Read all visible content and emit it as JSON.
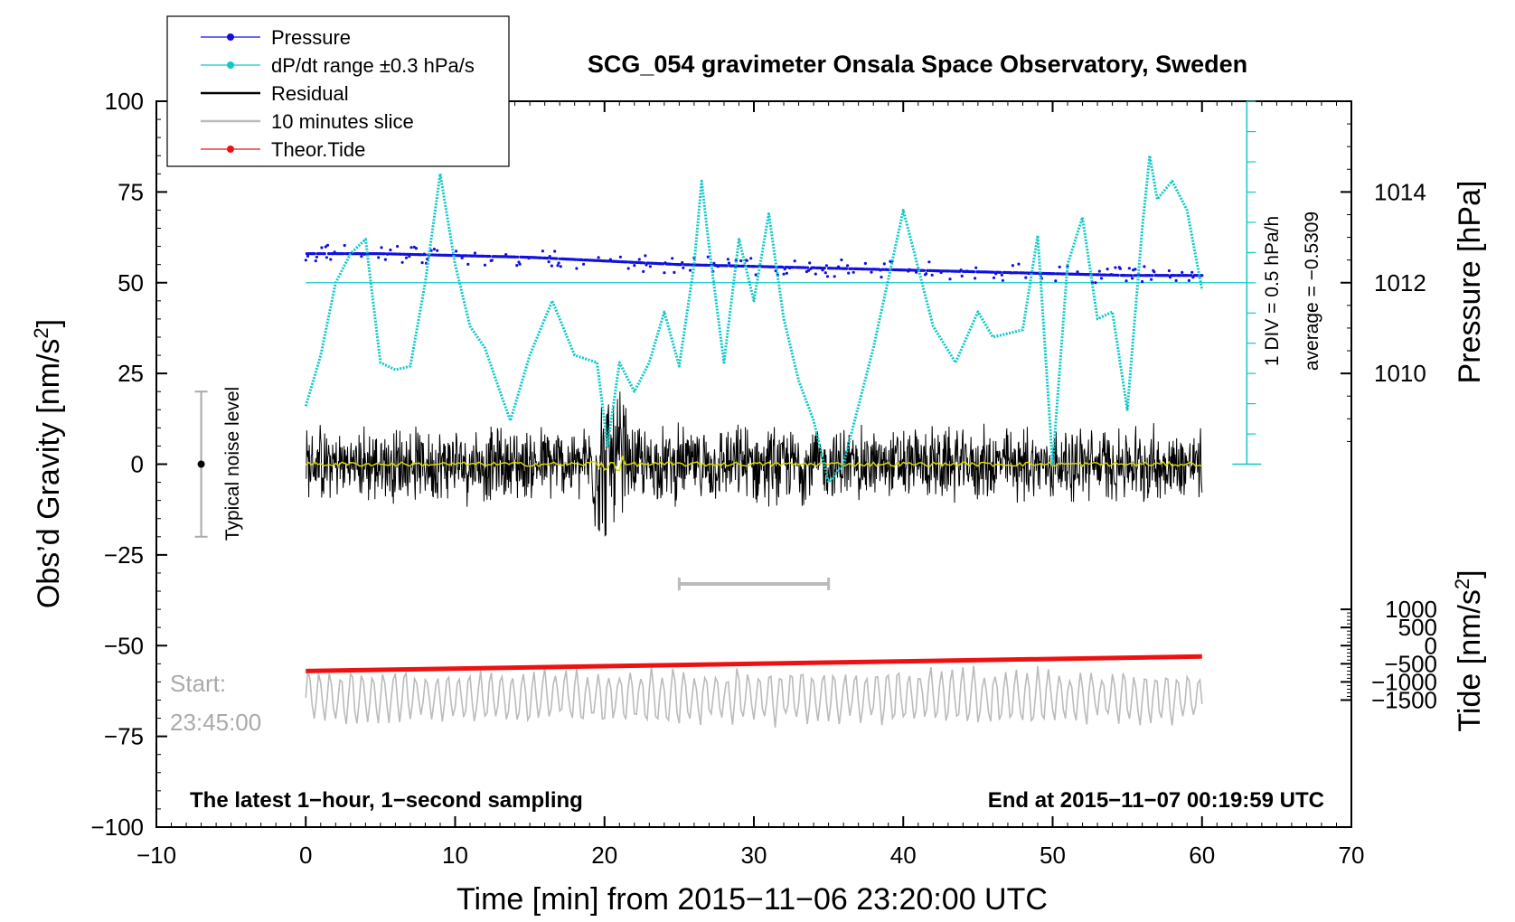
{
  "chart_data": {
    "type": "line",
    "title": "SCG_054 gravimeter Onsala Space Observatory, Sweden",
    "xlabel": "Time [min] from 2015−11−06 23:20:00 UTC",
    "xlim": [
      -10,
      70
    ],
    "x_ticks": [
      -10,
      0,
      10,
      20,
      30,
      40,
      50,
      60,
      70
    ],
    "x_tick_labels": [
      "−10",
      "0",
      "10",
      "20",
      "30",
      "40",
      "50",
      "60",
      "70"
    ],
    "y_left": {
      "label_main": "Obs’d Gravity [nm/s",
      "label_sup": "2",
      "label_end": "]",
      "lim": [
        -100,
        100
      ],
      "ticks": [
        -100,
        -75,
        -50,
        -25,
        0,
        25,
        50,
        75,
        100
      ],
      "tick_labels": [
        "−100",
        "−75",
        "−50",
        "−25",
        "0",
        "25",
        "50",
        "75",
        "100"
      ]
    },
    "y_right_pressure": {
      "label": "Pressure [hPa]",
      "ticks": [
        1010,
        1012,
        1014
      ],
      "tick_labels": [
        "1010",
        "1012",
        "1014"
      ],
      "gravity_at_1012": 50,
      "gravity_per_hPa": 12.5
    },
    "y_right_tide": {
      "label_main": "Tide [nm/s",
      "label_sup": "2",
      "label_end": "]",
      "ticks": [
        1000,
        500,
        0,
        -500,
        -1000,
        -1500
      ],
      "tick_labels": [
        "1000",
        "500",
        "0",
        "−500",
        "−1000",
        "−1500"
      ],
      "gravity_at_0": -50,
      "gravity_per_unit": 0.01
    },
    "dpdt_axis": {
      "annotation_1": "1 DIV = 0.5 hPa/h",
      "annotation_2": "average = −0.5309",
      "x": 63,
      "y_range": [
        0,
        100
      ],
      "tick_step": 8.33
    },
    "legend": {
      "position": "top-left",
      "entries": [
        {
          "label": "Pressure",
          "color": "#1010e0",
          "marker": true
        },
        {
          "label": "dP/dt range ±0.3 hPa/s",
          "color": "#10c8c8",
          "marker": true
        },
        {
          "label": "Residual",
          "color": "#000000",
          "marker": false
        },
        {
          "label": "10 minutes slice",
          "color": "#bbbbbb",
          "marker": false
        },
        {
          "label": "Theor.Tide",
          "color": "#ee1111",
          "marker": true
        }
      ]
    },
    "series": [
      {
        "name": "dP/dt",
        "color": "#10c8c8",
        "x": [
          0,
          1,
          2,
          3,
          4,
          5,
          6,
          7,
          8,
          9,
          10,
          11,
          12,
          13,
          13.7,
          15,
          16.5,
          18,
          19.5,
          20.2,
          21,
          22,
          23,
          24,
          25,
          26,
          26.5,
          27,
          28,
          29,
          30,
          31,
          32,
          33,
          34,
          35,
          36,
          38,
          40,
          42,
          43.5,
          45,
          46,
          48,
          49,
          50,
          51,
          52,
          53,
          54,
          55,
          56,
          56.5,
          57,
          58,
          59,
          60
        ],
        "y": [
          16,
          30,
          50,
          58,
          62,
          28,
          26,
          27,
          50,
          80,
          55,
          38,
          32,
          20,
          12,
          30,
          45,
          30,
          28,
          5,
          28,
          20,
          28,
          42,
          27,
          55,
          78,
          60,
          28,
          62,
          45,
          69,
          40,
          23,
          12,
          -5,
          0,
          32,
          70,
          38,
          28,
          42,
          35,
          37,
          63,
          0,
          55,
          68,
          40,
          42,
          15,
          65,
          85,
          73,
          78,
          70,
          48
        ]
      },
      {
        "name": "Pressure",
        "color": "#1010e0",
        "x": [
          0,
          5,
          10,
          15,
          20,
          25,
          30,
          35,
          40,
          45,
          50,
          55,
          60
        ],
        "y": [
          58,
          58,
          57.5,
          57,
          56,
          55,
          54.5,
          54,
          53.5,
          53,
          52.5,
          52,
          52
        ]
      },
      {
        "name": "Residual",
        "color": "#000000",
        "x_range": [
          0,
          60
        ],
        "y_center": 0,
        "amplitude": 8
      },
      {
        "name": "10 minutes slice",
        "color": "#bbbbbb",
        "x_range": [
          0,
          60
        ],
        "y_center": -64,
        "amplitude": 8
      },
      {
        "name": "Theor.Tide",
        "color": "#ee1111",
        "x": [
          0,
          60
        ],
        "y": [
          -57,
          -53
        ]
      }
    ],
    "noise_bar": {
      "label": "Typical noise level",
      "x": -7,
      "y_range": [
        -20,
        20
      ],
      "y_center": 0
    },
    "slice_bracket": {
      "x_range": [
        25,
        35
      ],
      "y": -33
    },
    "start_label_1": "Start:",
    "start_label_2": "23:45:00",
    "footer_left": "The latest 1−hour, 1−second sampling",
    "footer_right": "End at 2015−11−07 00:19:59 UTC"
  }
}
